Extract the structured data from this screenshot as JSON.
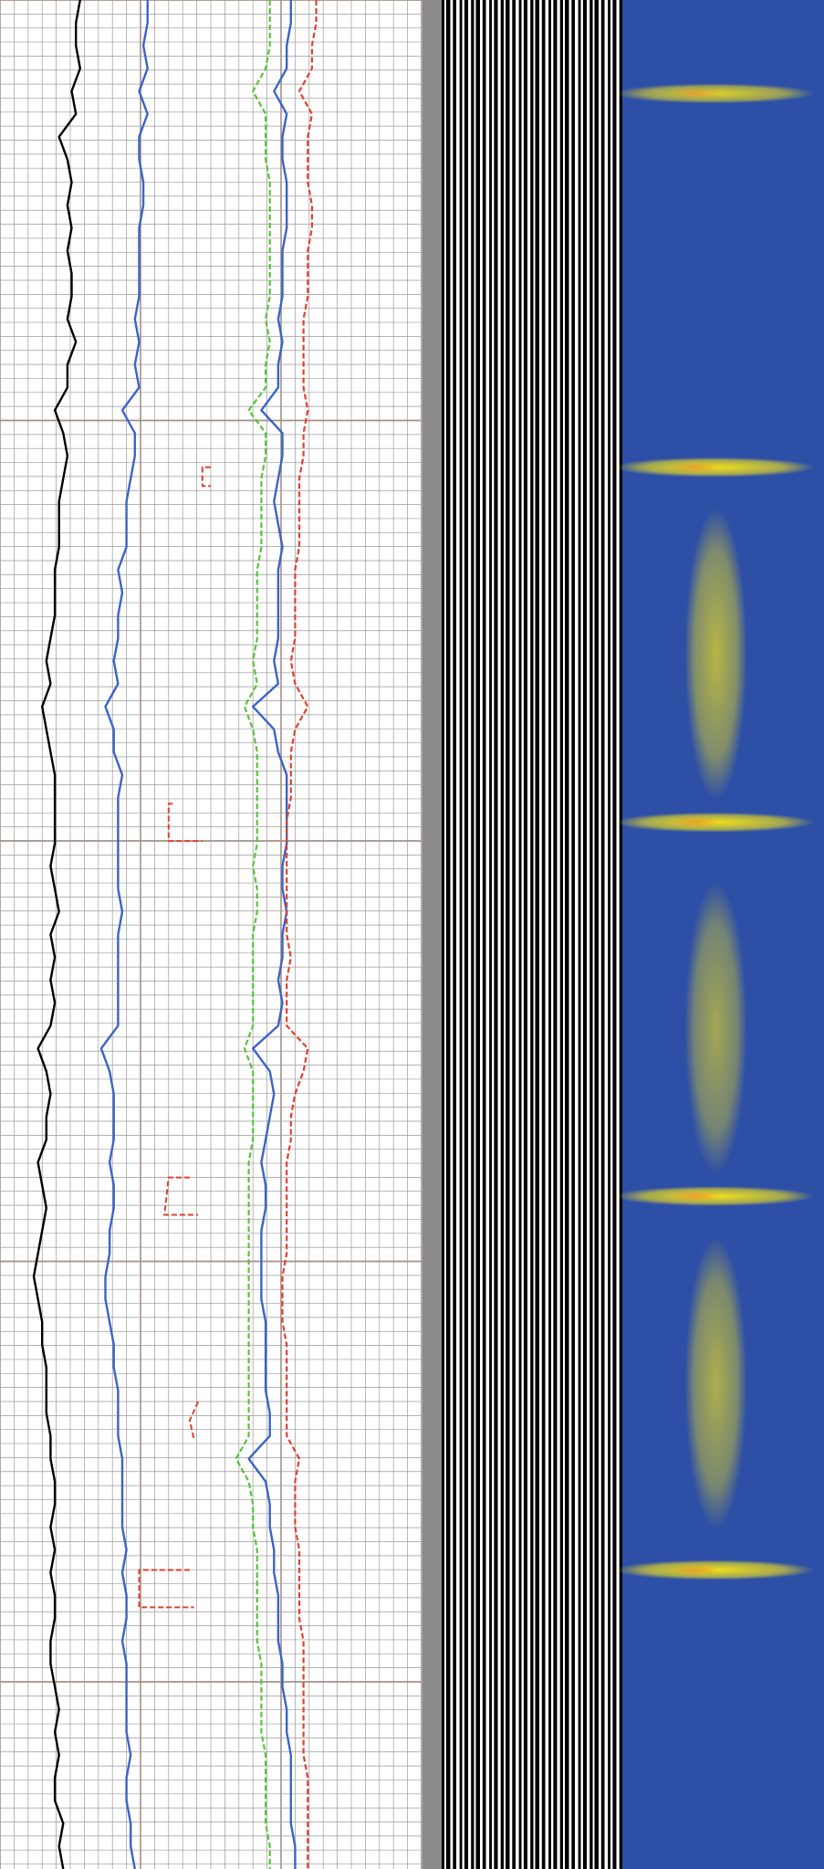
{
  "chart_data": {
    "type": "line",
    "title": "",
    "xlabel": "",
    "ylabel": "",
    "grid": true,
    "legend": "none",
    "tracks": [
      {
        "name": "",
        "kind": "curves",
        "curves": [
          {
            "name": "",
            "color": "#000000",
            "style": "solid",
            "values": [
              0.19,
              0.18,
              0.18,
              0.19,
              0.17,
              0.18,
              0.14,
              0.16,
              0.17,
              0.16,
              0.17,
              0.16,
              0.17,
              0.17,
              0.16,
              0.18,
              0.16,
              0.16,
              0.13,
              0.15,
              0.16,
              0.15,
              0.14,
              0.14,
              0.14,
              0.13,
              0.13,
              0.13,
              0.12,
              0.11,
              0.12,
              0.1,
              0.11,
              0.12,
              0.13,
              0.13,
              0.13,
              0.13,
              0.12,
              0.13,
              0.14,
              0.12,
              0.13,
              0.12,
              0.13,
              0.12,
              0.09,
              0.11,
              0.12,
              0.11,
              0.11,
              0.09,
              0.1,
              0.11,
              0.1,
              0.09,
              0.08,
              0.09,
              0.1,
              0.1,
              0.11,
              0.11,
              0.11,
              0.12,
              0.12,
              0.13,
              0.13,
              0.12,
              0.13,
              0.12,
              0.13,
              0.13,
              0.12,
              0.12,
              0.13,
              0.14,
              0.13,
              0.14,
              0.13,
              0.13,
              0.15,
              0.14,
              0.15
            ]
          },
          {
            "name": "",
            "color": "#3b63c9",
            "style": "solid",
            "values": [
              0.35,
              0.35,
              0.34,
              0.35,
              0.33,
              0.35,
              0.33,
              0.33,
              0.34,
              0.34,
              0.33,
              0.33,
              0.33,
              0.33,
              0.32,
              0.33,
              0.32,
              0.33,
              0.29,
              0.32,
              0.32,
              0.31,
              0.3,
              0.3,
              0.3,
              0.28,
              0.29,
              0.28,
              0.28,
              0.27,
              0.28,
              0.25,
              0.27,
              0.27,
              0.29,
              0.28,
              0.28,
              0.28,
              0.28,
              0.28,
              0.29,
              0.28,
              0.28,
              0.28,
              0.28,
              0.28,
              0.24,
              0.26,
              0.27,
              0.27,
              0.27,
              0.26,
              0.27,
              0.27,
              0.26,
              0.26,
              0.25,
              0.25,
              0.26,
              0.27,
              0.27,
              0.28,
              0.28,
              0.28,
              0.29,
              0.29,
              0.29,
              0.29,
              0.3,
              0.29,
              0.3,
              0.3,
              0.29,
              0.3,
              0.3,
              0.3,
              0.3,
              0.31,
              0.3,
              0.3,
              0.31,
              0.31,
              0.32
            ]
          },
          {
            "name": "",
            "color": "#3b63c9",
            "style": "solid",
            "values": [
              0.69,
              0.69,
              0.68,
              0.68,
              0.65,
              0.68,
              0.67,
              0.67,
              0.68,
              0.68,
              0.68,
              0.67,
              0.67,
              0.67,
              0.66,
              0.67,
              0.66,
              0.66,
              0.62,
              0.67,
              0.67,
              0.66,
              0.65,
              0.66,
              0.67,
              0.66,
              0.66,
              0.66,
              0.66,
              0.65,
              0.66,
              0.6,
              0.65,
              0.66,
              0.68,
              0.68,
              0.68,
              0.68,
              0.67,
              0.67,
              0.68,
              0.67,
              0.67,
              0.66,
              0.67,
              0.66,
              0.6,
              0.64,
              0.65,
              0.64,
              0.63,
              0.62,
              0.63,
              0.63,
              0.62,
              0.62,
              0.62,
              0.62,
              0.63,
              0.63,
              0.63,
              0.63,
              0.64,
              0.64,
              0.59,
              0.63,
              0.64,
              0.64,
              0.65,
              0.65,
              0.66,
              0.66,
              0.66,
              0.67,
              0.67,
              0.68,
              0.68,
              0.69,
              0.69,
              0.69,
              0.69,
              0.7,
              0.7
            ]
          },
          {
            "name": "",
            "color": "#59c33a",
            "style": "dashed",
            "values": [
              0.64,
              0.64,
              0.64,
              0.63,
              0.6,
              0.63,
              0.63,
              0.63,
              0.64,
              0.64,
              0.64,
              0.64,
              0.64,
              0.64,
              0.63,
              0.64,
              0.63,
              0.63,
              0.59,
              0.63,
              0.63,
              0.62,
              0.62,
              0.62,
              0.62,
              0.61,
              0.61,
              0.61,
              0.61,
              0.6,
              0.61,
              0.58,
              0.6,
              0.61,
              0.61,
              0.61,
              0.61,
              0.61,
              0.6,
              0.61,
              0.61,
              0.6,
              0.6,
              0.6,
              0.6,
              0.6,
              0.58,
              0.6,
              0.6,
              0.6,
              0.6,
              0.59,
              0.59,
              0.59,
              0.59,
              0.59,
              0.59,
              0.59,
              0.59,
              0.59,
              0.59,
              0.59,
              0.59,
              0.59,
              0.56,
              0.59,
              0.6,
              0.6,
              0.61,
              0.61,
              0.61,
              0.61,
              0.61,
              0.62,
              0.62,
              0.62,
              0.62,
              0.63,
              0.63,
              0.63,
              0.63,
              0.64,
              0.64
            ]
          },
          {
            "name": "",
            "color": "#e2402e",
            "style": "dashed",
            "values": [
              0.75,
              0.75,
              0.74,
              0.74,
              0.71,
              0.74,
              0.73,
              0.73,
              0.73,
              0.74,
              0.74,
              0.73,
              0.73,
              0.73,
              0.72,
              0.72,
              0.72,
              0.72,
              0.73,
              0.72,
              0.72,
              0.71,
              0.71,
              0.71,
              0.71,
              0.7,
              0.7,
              0.7,
              0.7,
              0.69,
              0.7,
              0.73,
              0.7,
              0.69,
              0.69,
              0.69,
              0.68,
              0.68,
              0.68,
              0.68,
              0.68,
              0.68,
              0.69,
              0.68,
              0.68,
              0.68,
              0.73,
              0.72,
              0.7,
              0.69,
              0.69,
              0.68,
              0.68,
              0.68,
              0.68,
              0.68,
              0.67,
              0.67,
              0.67,
              0.68,
              0.68,
              0.68,
              0.68,
              0.68,
              0.71,
              0.7,
              0.7,
              0.7,
              0.71,
              0.71,
              0.71,
              0.71,
              0.72,
              0.72,
              0.72,
              0.72,
              0.72,
              0.72,
              0.73,
              0.73,
              0.73,
              0.73,
              0.73
            ]
          }
        ],
        "markers": [
          {
            "name": "",
            "color": "#e2402e",
            "style": "dashed",
            "values": [
              [
                0.5,
                0.25
              ],
              [
                0.48,
                0.25
              ],
              [
                0.48,
                0.26
              ],
              [
                0.5,
                0.26
              ]
            ]
          },
          {
            "name": "",
            "color": "#e2402e",
            "style": "dashed",
            "values": [
              [
                0.41,
                0.43
              ],
              [
                0.4,
                0.43
              ],
              [
                0.4,
                0.45
              ],
              [
                0.48,
                0.45
              ]
            ]
          },
          {
            "name": "",
            "color": "#e2402e",
            "style": "dashed",
            "values": [
              [
                0.45,
                0.63
              ],
              [
                0.4,
                0.63
              ],
              [
                0.39,
                0.65
              ],
              [
                0.47,
                0.65
              ]
            ]
          },
          {
            "name": "",
            "color": "#e2402e",
            "style": "dashed",
            "values": [
              [
                0.47,
                0.75
              ],
              [
                0.45,
                0.76
              ],
              [
                0.46,
                0.77
              ]
            ]
          },
          {
            "name": "",
            "color": "#e2402e",
            "style": "dashed",
            "values": [
              [
                0.45,
                0.84
              ],
              [
                0.33,
                0.84
              ],
              [
                0.33,
                0.86
              ],
              [
                0.46,
                0.86
              ]
            ]
          }
        ]
      },
      {
        "name": "",
        "kind": "image",
        "pattern": "vertical-stripes",
        "colors": [
          "#000000",
          "#ffffff"
        ]
      },
      {
        "name": "",
        "kind": "image",
        "pattern": "heatmap",
        "background": "#2e4fa6",
        "highlight": "#f2e21a",
        "hot": "#ef8a2a",
        "bands": [
          {
            "depth": 0.05,
            "intensity": 0.9
          },
          {
            "depth": 0.25,
            "intensity": 1.0
          },
          {
            "depth": 0.44,
            "intensity": 1.0
          },
          {
            "depth": 0.64,
            "intensity": 1.0
          },
          {
            "depth": 0.84,
            "intensity": 1.0
          }
        ],
        "blobs": [
          {
            "depth": 0.35,
            "intensity": 0.7
          },
          {
            "depth": 0.55,
            "intensity": 0.6
          },
          {
            "depth": 0.74,
            "intensity": 0.65
          }
        ]
      }
    ]
  }
}
